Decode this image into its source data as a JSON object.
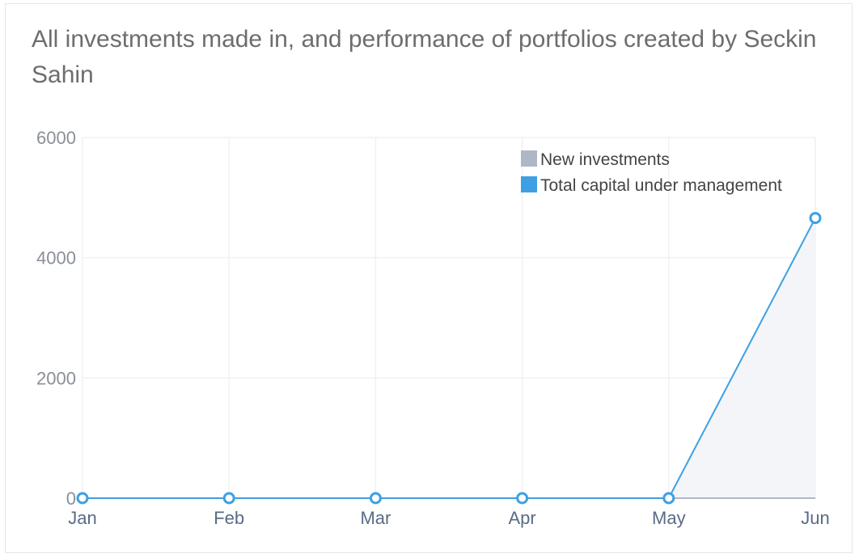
{
  "chart_data": {
    "type": "area",
    "title": "All investments made in, and performance of portfolios created by Seckin Sahin",
    "categories": [
      "Jan",
      "Feb",
      "Mar",
      "Apr",
      "May",
      "Jun"
    ],
    "series": [
      {
        "name": "New investments",
        "color": "#aeb7c7",
        "values": [
          0,
          0,
          0,
          0,
          0,
          0
        ]
      },
      {
        "name": "Total capital under management",
        "color": "#3ea0e3",
        "values": [
          0,
          0,
          0,
          0,
          0,
          4660
        ]
      }
    ],
    "yticks": [
      "0",
      "2000",
      "4000",
      "6000"
    ],
    "ylim": [
      0,
      6000
    ],
    "xlabel": "",
    "ylabel": "",
    "grid": true,
    "legend_position": "top-right",
    "area_fill_color": "#f4f5f8",
    "grid_color": "#f0f1f3"
  }
}
